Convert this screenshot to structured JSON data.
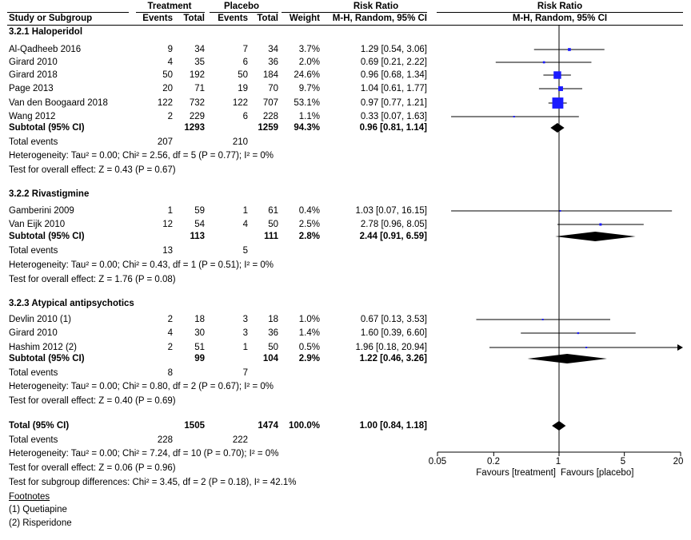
{
  "header": {
    "study_col": "Study or Subgroup",
    "treatment": "Treatment",
    "placebo": "Placebo",
    "events": "Events",
    "total": "Total",
    "weight": "Weight",
    "rr_title": "Risk Ratio",
    "rr_method": "M-H, Random, 95% CI",
    "plot_title": "Risk Ratio",
    "plot_method": "M-H, Random, 95% CI"
  },
  "groups": [
    {
      "title": "3.2.1 Haloperidol",
      "studies": [
        {
          "name": "Al-Qadheeb 2016",
          "te": "9",
          "tt": "34",
          "pe": "7",
          "pt": "34",
          "w": "3.7%",
          "ci": "1.29 [0.54, 3.06]"
        },
        {
          "name": "Girard 2010",
          "te": "4",
          "tt": "35",
          "pe": "6",
          "pt": "36",
          "w": "2.0%",
          "ci": "0.69 [0.21, 2.22]"
        },
        {
          "name": "Girard 2018",
          "te": "50",
          "tt": "192",
          "pe": "50",
          "pt": "184",
          "w": "24.6%",
          "ci": "0.96 [0.68, 1.34]"
        },
        {
          "name": "Page 2013",
          "te": "20",
          "tt": "71",
          "pe": "19",
          "pt": "70",
          "w": "9.7%",
          "ci": "1.04 [0.61, 1.77]"
        },
        {
          "name": "Van den Boogaard 2018",
          "te": "122",
          "tt": "732",
          "pe": "122",
          "pt": "707",
          "w": "53.1%",
          "ci": "0.97 [0.77, 1.21]"
        },
        {
          "name": "Wang 2012",
          "te": "2",
          "tt": "229",
          "pe": "6",
          "pt": "228",
          "w": "1.1%",
          "ci": "0.33 [0.07, 1.63]"
        }
      ],
      "subtotal": {
        "label": "Subtotal (95% CI)",
        "tt": "1293",
        "pt": "1259",
        "w": "94.3%",
        "ci": "0.96 [0.81, 1.14]"
      },
      "events": {
        "label": "Total events",
        "te": "207",
        "pe": "210"
      },
      "het": "Heterogeneity: Tau² = 0.00; Chi² = 2.56, df = 5 (P = 0.77); I² = 0%",
      "test": "Test for overall effect: Z = 0.43 (P = 0.67)"
    },
    {
      "title": "3.2.2 Rivastigmine",
      "studies": [
        {
          "name": "Gamberini 2009",
          "te": "1",
          "tt": "59",
          "pe": "1",
          "pt": "61",
          "w": "0.4%",
          "ci": "1.03 [0.07, 16.15]"
        },
        {
          "name": "Van Eijk 2010",
          "te": "12",
          "tt": "54",
          "pe": "4",
          "pt": "50",
          "w": "2.5%",
          "ci": "2.78 [0.96, 8.05]"
        }
      ],
      "subtotal": {
        "label": "Subtotal (95% CI)",
        "tt": "113",
        "pt": "111",
        "w": "2.8%",
        "ci": "2.44 [0.91, 6.59]"
      },
      "events": {
        "label": "Total events",
        "te": "13",
        "pe": "5"
      },
      "het": "Heterogeneity: Tau² = 0.00; Chi² = 0.43, df = 1 (P = 0.51); I² = 0%",
      "test": "Test for overall effect: Z = 1.76 (P = 0.08)"
    },
    {
      "title": "3.2.3 Atypical antipsychotics",
      "studies": [
        {
          "name": "Devlin 2010 (1)",
          "te": "2",
          "tt": "18",
          "pe": "3",
          "pt": "18",
          "w": "1.0%",
          "ci": "0.67 [0.13, 3.53]"
        },
        {
          "name": "Girard 2010",
          "te": "4",
          "tt": "30",
          "pe": "3",
          "pt": "36",
          "w": "1.4%",
          "ci": "1.60 [0.39, 6.60]"
        },
        {
          "name": "Hashim 2012 (2)",
          "te": "2",
          "tt": "51",
          "pe": "1",
          "pt": "50",
          "w": "0.5%",
          "ci": "1.96 [0.18, 20.94]"
        }
      ],
      "subtotal": {
        "label": "Subtotal (95% CI)",
        "tt": "99",
        "pt": "104",
        "w": "2.9%",
        "ci": "1.22 [0.46, 3.26]"
      },
      "events": {
        "label": "Total events",
        "te": "8",
        "pe": "7"
      },
      "het": "Heterogeneity: Tau² = 0.00; Chi² = 0.80, df = 2 (P = 0.67); I² = 0%",
      "test": "Test for overall effect: Z = 0.40 (P = 0.69)"
    }
  ],
  "total": {
    "label": "Total (95% CI)",
    "tt": "1505",
    "pt": "1474",
    "w": "100.0%",
    "ci": "1.00 [0.84, 1.18]",
    "events_label": "Total events",
    "te": "228",
    "pe": "222",
    "het": "Heterogeneity: Tau² = 0.00; Chi² = 7.24, df = 10 (P = 0.70); I² = 0%",
    "test": "Test for overall effect: Z = 0.06 (P = 0.96)",
    "subgroup": "Test for subgroup differences: Chi² = 3.45, df = 2 (P = 0.18), I² = 42.1%"
  },
  "footnotes": {
    "title": "Footnotes",
    "items": [
      "(1) Quetiapine",
      "(2) Risperidone"
    ]
  },
  "axis": {
    "ticks": [
      "0.05",
      "0.2",
      "1",
      "5",
      "20"
    ],
    "favours_left": "Favours [treatment]",
    "favours_right": "Favours [placebo]"
  },
  "colors": {
    "marker": "#1a1aff",
    "diamond": "#000000",
    "line": "#000000"
  },
  "chart_data": {
    "type": "forest",
    "scale": "log",
    "xlim": [
      0.05,
      20
    ],
    "ticks": [
      0.05,
      0.2,
      1,
      5,
      20
    ],
    "null_line": 1,
    "studies": [
      {
        "name": "Al-Qadheeb 2016",
        "rr": 1.29,
        "lo": 0.54,
        "hi": 3.06,
        "weight": 3.7
      },
      {
        "name": "Girard 2010",
        "rr": 0.69,
        "lo": 0.21,
        "hi": 2.22,
        "weight": 2.0
      },
      {
        "name": "Girard 2018",
        "rr": 0.96,
        "lo": 0.68,
        "hi": 1.34,
        "weight": 24.6
      },
      {
        "name": "Page 2013",
        "rr": 1.04,
        "lo": 0.61,
        "hi": 1.77,
        "weight": 9.7
      },
      {
        "name": "Van den Boogaard 2018",
        "rr": 0.97,
        "lo": 0.77,
        "hi": 1.21,
        "weight": 53.1
      },
      {
        "name": "Wang 2012",
        "rr": 0.33,
        "lo": 0.07,
        "hi": 1.63,
        "weight": 1.1
      },
      {
        "name": "Gamberini 2009",
        "rr": 1.03,
        "lo": 0.07,
        "hi": 16.15,
        "weight": 0.4
      },
      {
        "name": "Van Eijk 2010",
        "rr": 2.78,
        "lo": 0.96,
        "hi": 8.05,
        "weight": 2.5
      },
      {
        "name": "Devlin 2010 (1)",
        "rr": 0.67,
        "lo": 0.13,
        "hi": 3.53,
        "weight": 1.0
      },
      {
        "name": "Girard 2010",
        "rr": 1.6,
        "lo": 0.39,
        "hi": 6.6,
        "weight": 1.4
      },
      {
        "name": "Hashim 2012 (2)",
        "rr": 1.96,
        "lo": 0.18,
        "hi": 20.94,
        "weight": 0.5
      }
    ],
    "summaries": [
      {
        "name": "Subtotal 3.2.1 Haloperidol",
        "rr": 0.96,
        "lo": 0.81,
        "hi": 1.14
      },
      {
        "name": "Subtotal 3.2.2 Rivastigmine",
        "rr": 2.44,
        "lo": 0.91,
        "hi": 6.59
      },
      {
        "name": "Subtotal 3.2.3 Atypical antipsychotics",
        "rr": 1.22,
        "lo": 0.46,
        "hi": 3.26
      },
      {
        "name": "Total (95% CI)",
        "rr": 1.0,
        "lo": 0.84,
        "hi": 1.18
      }
    ]
  }
}
